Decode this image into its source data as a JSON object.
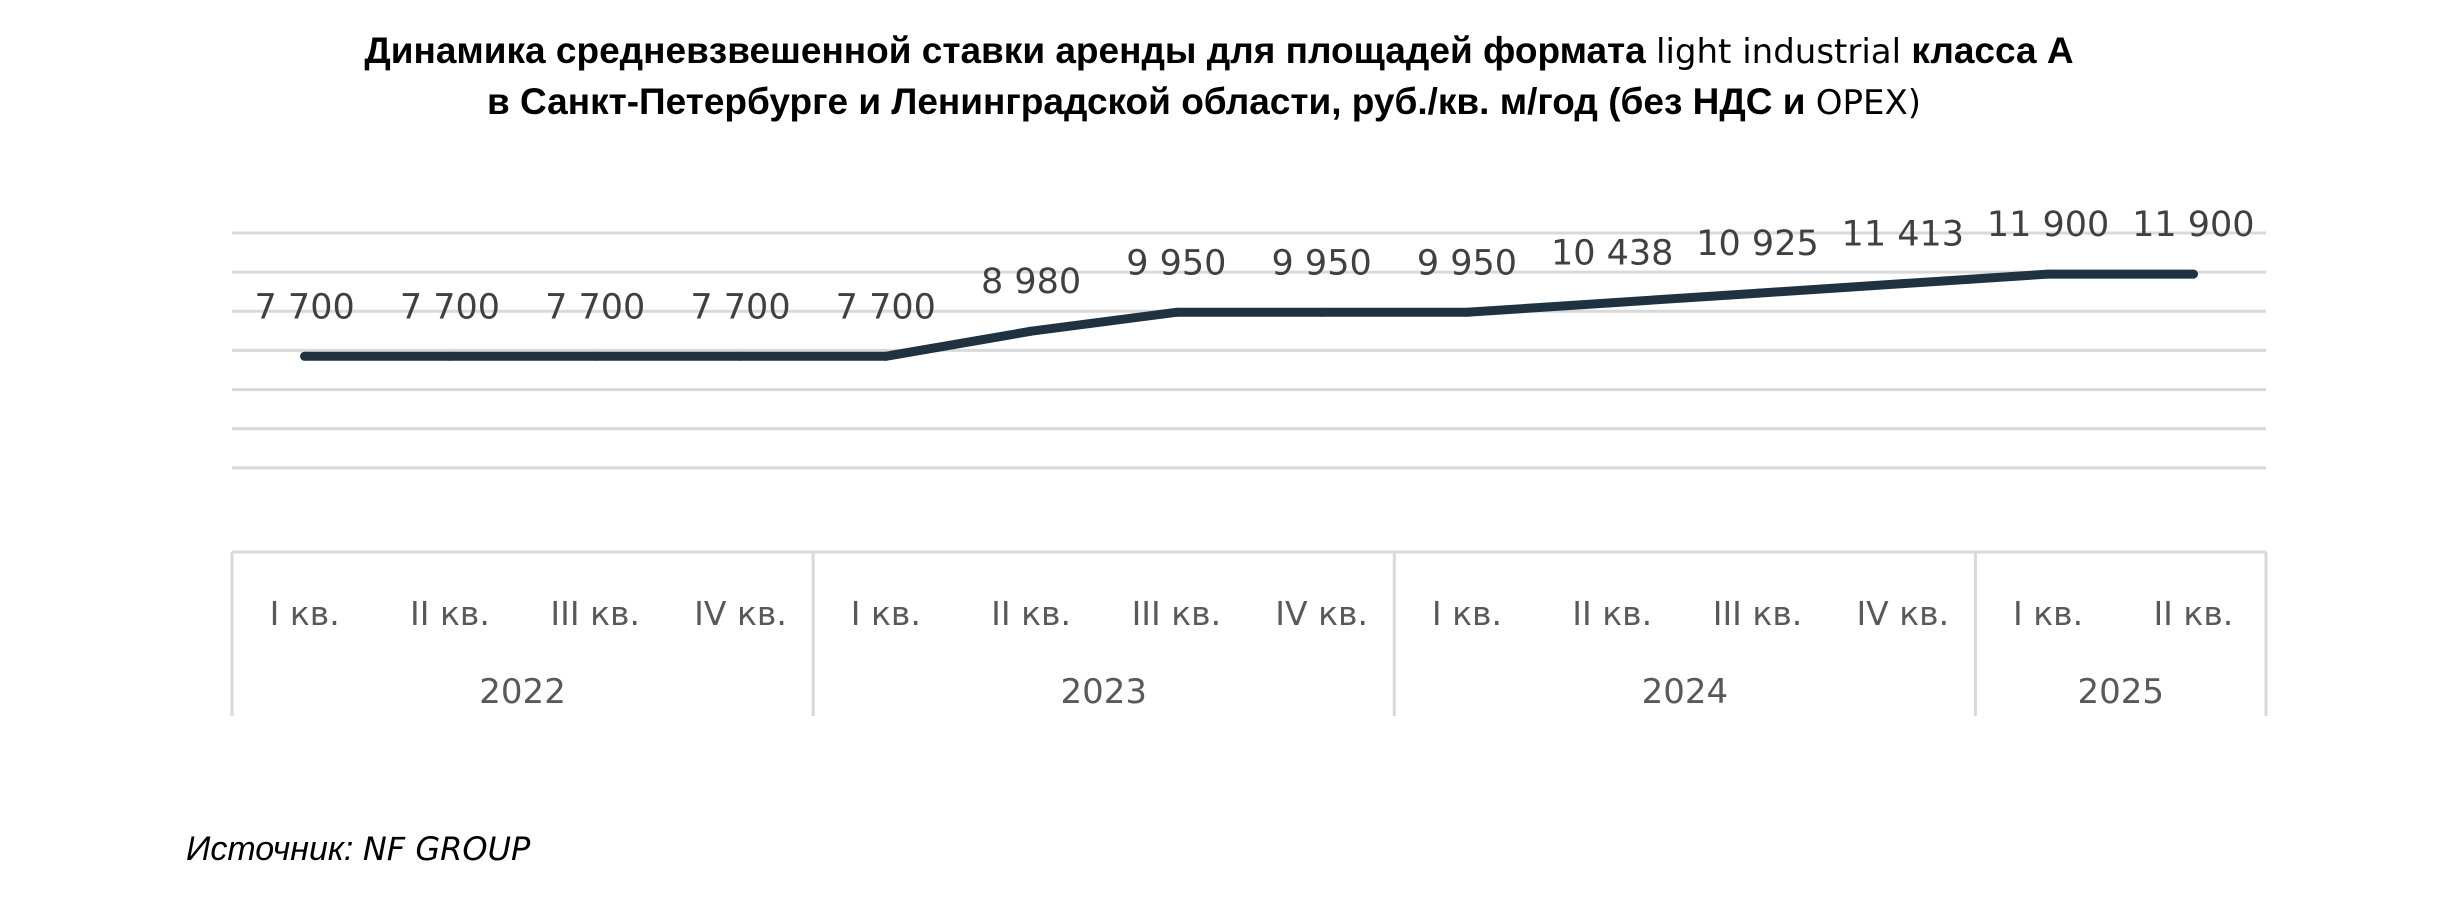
{
  "title": {
    "line1_part1": "Динамика средневзвешенной ставки аренды для площадей формата",
    "line1_part2": "light industrial",
    "line1_part3": "класса А",
    "line2_part1": "в Санкт-Петербурге и Ленинградской области, руб./кв. м/год (без НДС и",
    "line2_part2": "OPEX)"
  },
  "source": {
    "label": "Источник:",
    "name": "NF GROUP"
  },
  "colors": {
    "line": "#1f3242",
    "grid": "#d9d9d9",
    "axis_text": "#595959",
    "label_text": "#404040"
  },
  "chart_data": {
    "type": "line",
    "title": "Динамика средневзвешенной ставки аренды для площадей формата light industrial класса А в Санкт-Петербурге и Ленинградской области, руб./кв. м/год (без НДС и OPEX)",
    "categories": [
      "I кв.",
      "II кв.",
      "III кв.",
      "IV кв.",
      "I кв.",
      "II кв.",
      "III кв.",
      "IV кв.",
      "I кв.",
      "II кв.",
      "III кв.",
      "IV кв.",
      "I кв.",
      "II кв."
    ],
    "groups": [
      {
        "label": "2022",
        "count": 4
      },
      {
        "label": "2023",
        "count": 4
      },
      {
        "label": "2024",
        "count": 4
      },
      {
        "label": "2025",
        "count": 2
      }
    ],
    "series": [
      {
        "values": [
          7700,
          7700,
          7700,
          7700,
          7700,
          8980,
          9950,
          9950,
          9950,
          10438,
          10925,
          11413,
          11900,
          11900
        ],
        "labels": [
          "7 700",
          "7 700",
          "7 700",
          "7 700",
          "7 700",
          "8 980",
          "9 950",
          "9 950",
          "9 950",
          "10 438",
          "10 925",
          "11 413",
          "11 900",
          "11 900"
        ]
      }
    ],
    "ylim": [
      0,
      14000
    ],
    "grid": true,
    "legend": "none"
  }
}
